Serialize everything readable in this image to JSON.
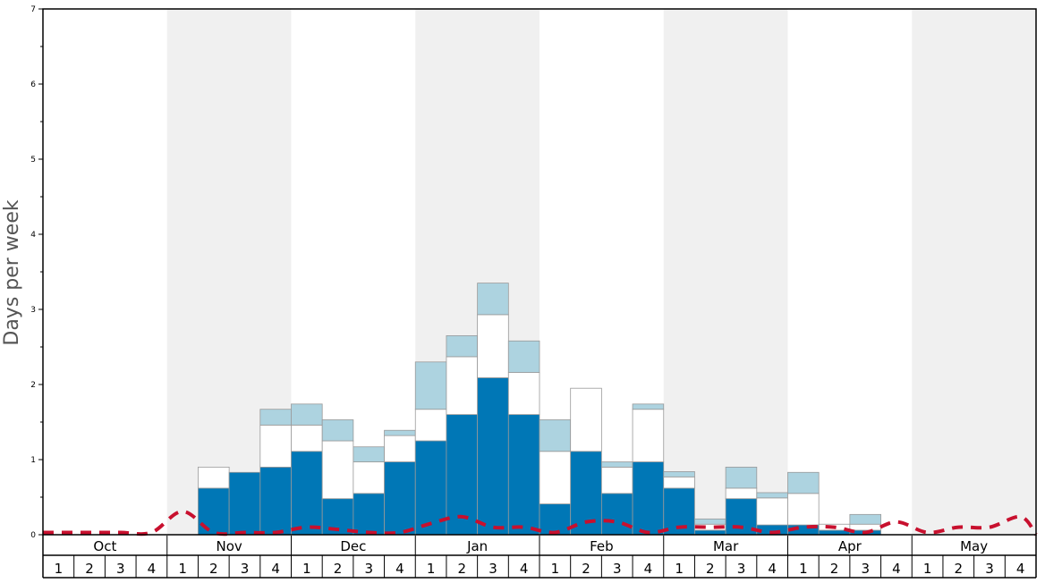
{
  "chart_data": {
    "type": "bar",
    "ylabel": "Days per week",
    "ylim": [
      0,
      7
    ],
    "y_ticks": [
      "0",
      "1",
      "2",
      "3",
      "4",
      "5",
      "6",
      "7"
    ],
    "months": [
      "Oct",
      "Nov",
      "Dec",
      "Jan",
      "Feb",
      "Mar",
      "Apr",
      "May"
    ],
    "week_labels": [
      "1",
      "2",
      "3",
      "4"
    ],
    "colors": {
      "series_1": "#0077b6",
      "series_2": "#ffffff",
      "series_3": "#add3e0",
      "line": "#c8102e",
      "shade": "#f0f0f0",
      "border": "#999999"
    },
    "series": [
      {
        "values": [
          0,
          0,
          0,
          0,
          0,
          0.62,
          0.83,
          0.9,
          1.11,
          0.48,
          0.55,
          0.97,
          1.25,
          1.6,
          2.09,
          1.6,
          0.41,
          1.11,
          0.55,
          0.97,
          0.62,
          0.06,
          0.48,
          0.13,
          0.13,
          0.06,
          0.06,
          0,
          0,
          0,
          0,
          0
        ]
      },
      {
        "values": [
          0,
          0,
          0,
          0,
          0,
          0.28,
          0,
          0.56,
          0.35,
          0.77,
          0.42,
          0.35,
          0.42,
          0.77,
          0.84,
          0.56,
          0.7,
          0.84,
          0.35,
          0.7,
          0.15,
          0.08,
          0.14,
          0.36,
          0.42,
          0.08,
          0.08,
          0,
          0,
          0,
          0,
          0
        ]
      },
      {
        "values": [
          0,
          0,
          0,
          0,
          0,
          0,
          0,
          0.21,
          0.28,
          0.28,
          0.2,
          0.07,
          0.63,
          0.28,
          0.42,
          0.42,
          0.42,
          0,
          0.07,
          0.07,
          0.07,
          0.07,
          0.28,
          0.07,
          0.28,
          0,
          0.13,
          0,
          0,
          0,
          0,
          0
        ]
      },
      {
        "type": "line",
        "values": [
          0.03,
          0.03,
          0.03,
          0.03,
          0.31,
          0.03,
          0.03,
          0.03,
          0.1,
          0.07,
          0.03,
          0.03,
          0.15,
          0.24,
          0.1,
          0.1,
          0.03,
          0.17,
          0.17,
          0.03,
          0.1,
          0.1,
          0.1,
          0.03,
          0.1,
          0.1,
          0.03,
          0.17,
          0.03,
          0.1,
          0.1,
          0.24
        ]
      }
    ]
  }
}
